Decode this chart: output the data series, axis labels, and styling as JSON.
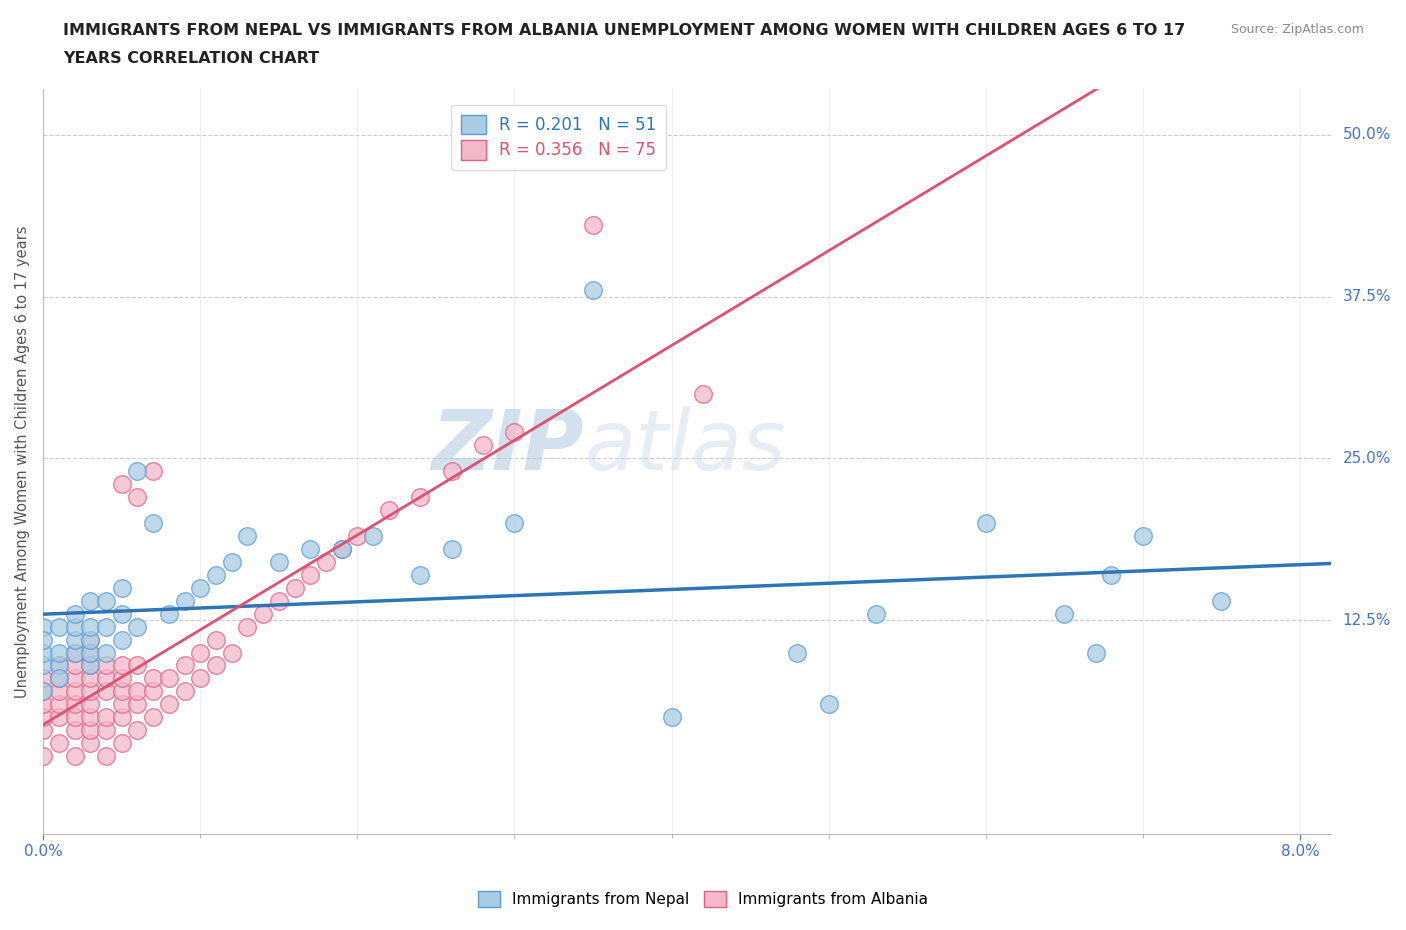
{
  "title_line1": "IMMIGRANTS FROM NEPAL VS IMMIGRANTS FROM ALBANIA UNEMPLOYMENT AMONG WOMEN WITH CHILDREN AGES 6 TO 17",
  "title_line2": "YEARS CORRELATION CHART",
  "source": "Source: ZipAtlas.com",
  "xlim": [
    0.0,
    0.082
  ],
  "ylim": [
    -0.04,
    0.535
  ],
  "ylabel_ticks": [
    0.0,
    0.125,
    0.25,
    0.375,
    0.5
  ],
  "ylabel_tick_labels": [
    "",
    "12.5%",
    "25.0%",
    "37.5%",
    "50.0%"
  ],
  "nepal_R": 0.201,
  "nepal_N": 51,
  "albania_R": 0.356,
  "albania_N": 75,
  "nepal_color": "#a8cce4",
  "albania_color": "#f4b8cb",
  "nepal_edge_color": "#5b9bd5",
  "albania_edge_color": "#e06080",
  "nepal_line_color": "#2e75b6",
  "albania_line_color": "#e05070",
  "watermark_color": "#d8e8f0",
  "nepal_x": [
    0.0,
    0.0,
    0.0,
    0.0,
    0.0,
    0.001,
    0.001,
    0.001,
    0.001,
    0.002,
    0.002,
    0.002,
    0.002,
    0.003,
    0.003,
    0.003,
    0.003,
    0.003,
    0.004,
    0.004,
    0.004,
    0.005,
    0.005,
    0.005,
    0.006,
    0.006,
    0.007,
    0.008,
    0.009,
    0.01,
    0.011,
    0.012,
    0.013,
    0.015,
    0.017,
    0.019,
    0.021,
    0.024,
    0.026,
    0.03,
    0.035,
    0.04,
    0.048,
    0.05,
    0.053,
    0.06,
    0.065,
    0.067,
    0.068,
    0.07,
    0.075
  ],
  "nepal_y": [
    0.07,
    0.09,
    0.1,
    0.12,
    0.11,
    0.09,
    0.1,
    0.12,
    0.08,
    0.1,
    0.11,
    0.12,
    0.13,
    0.09,
    0.1,
    0.11,
    0.12,
    0.14,
    0.1,
    0.12,
    0.14,
    0.11,
    0.13,
    0.15,
    0.12,
    0.24,
    0.2,
    0.13,
    0.14,
    0.15,
    0.16,
    0.17,
    0.19,
    0.17,
    0.18,
    0.18,
    0.19,
    0.16,
    0.18,
    0.2,
    0.38,
    0.05,
    0.1,
    0.06,
    0.13,
    0.2,
    0.13,
    0.1,
    0.16,
    0.19,
    0.14
  ],
  "albania_x": [
    0.0,
    0.0,
    0.0,
    0.0,
    0.0,
    0.0,
    0.001,
    0.001,
    0.001,
    0.001,
    0.001,
    0.001,
    0.002,
    0.002,
    0.002,
    0.002,
    0.002,
    0.002,
    0.002,
    0.002,
    0.003,
    0.003,
    0.003,
    0.003,
    0.003,
    0.003,
    0.003,
    0.003,
    0.003,
    0.004,
    0.004,
    0.004,
    0.004,
    0.004,
    0.004,
    0.005,
    0.005,
    0.005,
    0.005,
    0.005,
    0.005,
    0.005,
    0.006,
    0.006,
    0.006,
    0.006,
    0.006,
    0.007,
    0.007,
    0.007,
    0.007,
    0.008,
    0.008,
    0.009,
    0.009,
    0.01,
    0.01,
    0.011,
    0.011,
    0.012,
    0.013,
    0.014,
    0.015,
    0.016,
    0.017,
    0.018,
    0.019,
    0.02,
    0.022,
    0.024,
    0.026,
    0.028,
    0.03,
    0.035,
    0.042
  ],
  "albania_y": [
    0.02,
    0.04,
    0.05,
    0.06,
    0.07,
    0.08,
    0.03,
    0.05,
    0.06,
    0.07,
    0.08,
    0.09,
    0.02,
    0.04,
    0.05,
    0.06,
    0.07,
    0.08,
    0.09,
    0.1,
    0.03,
    0.04,
    0.05,
    0.06,
    0.07,
    0.08,
    0.09,
    0.1,
    0.11,
    0.02,
    0.04,
    0.05,
    0.07,
    0.08,
    0.09,
    0.03,
    0.05,
    0.06,
    0.07,
    0.08,
    0.09,
    0.23,
    0.04,
    0.06,
    0.07,
    0.09,
    0.22,
    0.05,
    0.07,
    0.08,
    0.24,
    0.06,
    0.08,
    0.07,
    0.09,
    0.08,
    0.1,
    0.09,
    0.11,
    0.1,
    0.12,
    0.13,
    0.14,
    0.15,
    0.16,
    0.17,
    0.18,
    0.19,
    0.21,
    0.22,
    0.24,
    0.26,
    0.27,
    0.43,
    0.3
  ]
}
